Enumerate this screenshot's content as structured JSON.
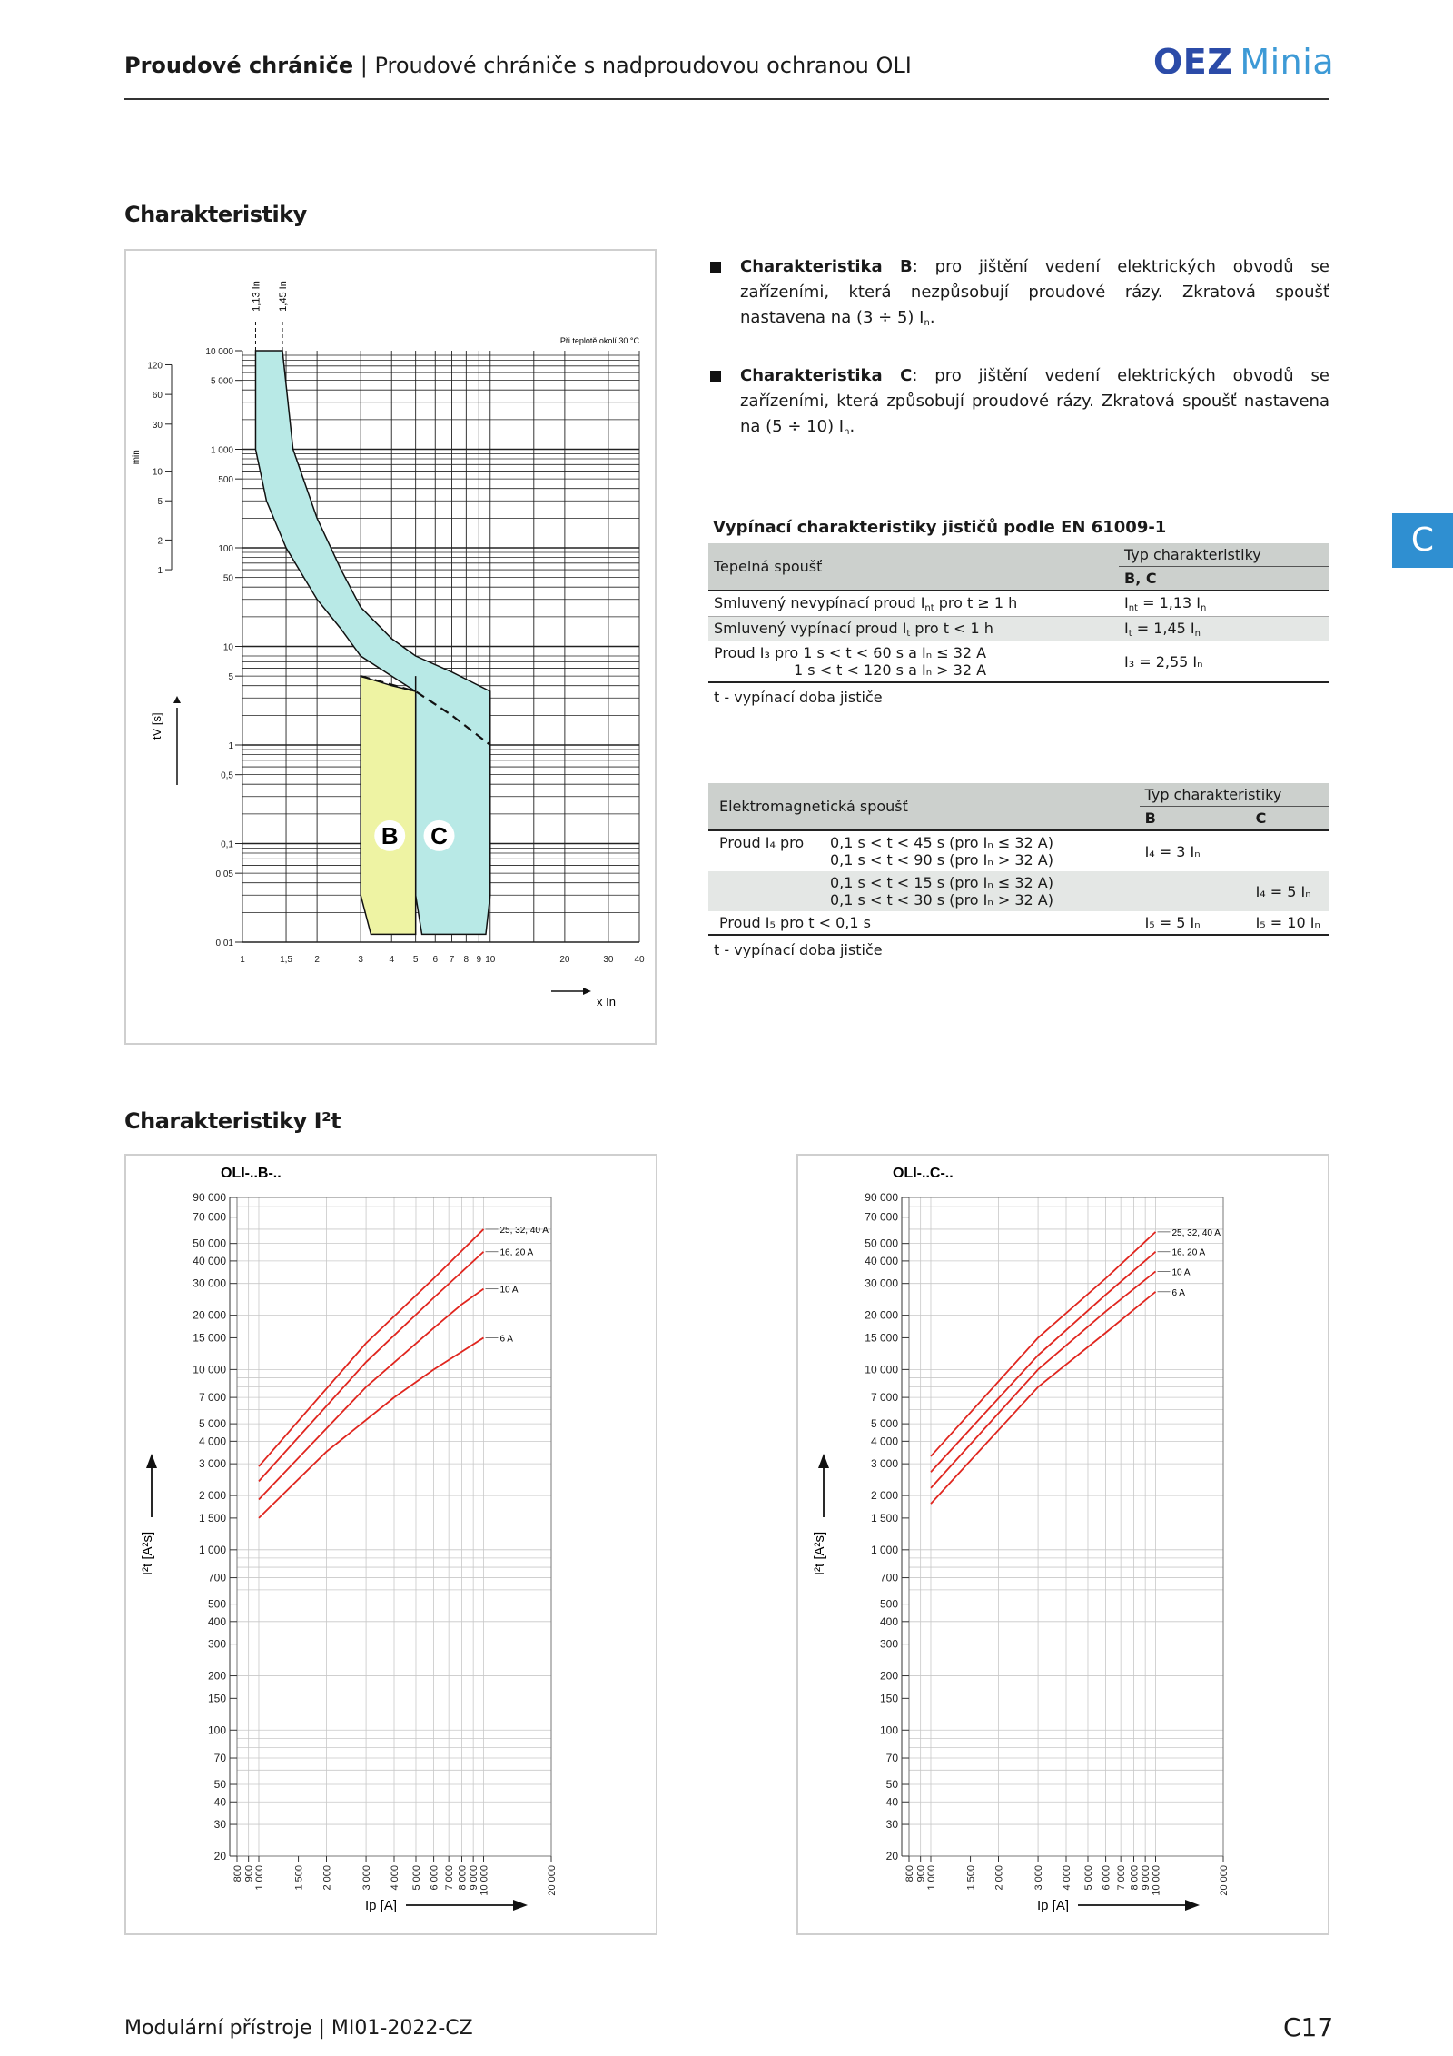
{
  "header": {
    "title_bold": "Proudové chrániče",
    "title_rest": " | Proudové chrániče s nadproudovou ochranou OLI",
    "logo_oez": "OEZ",
    "logo_minia": "Minia"
  },
  "section1_title": "Charakteristiky",
  "section2_title": "Charakteristiky I²t",
  "side_tab": "C",
  "bullets": [
    {
      "bold": "Charakteristika B",
      "text": ": pro jištění vedení elektrických obvodů se zařízeními, která nezpůsobují proudové rázy. Zkratová spoušť nastavena na (3 ÷ 5) I",
      "sub": "n",
      "end": "."
    },
    {
      "bold": "Charakteristika C",
      "text": ": pro jištění vedení elektrických obvodů se zařízeními, která způsobují proudové rázy. Zkratová spoušť nastavena na (5 ÷ 10) I",
      "sub": "n",
      "end": "."
    }
  ],
  "tables": {
    "title": "Vypínací charakteristiky jističů podle EN 61009-1",
    "thermal": {
      "head_left": "Tepelná spoušť",
      "head_type": "Typ charakteristiky",
      "head_bc": "B, C",
      "r1_label": "Smluvený nevypínací proud  I",
      "r1_sub": "nt",
      "r1_rest": " pro t ≥ 1 h",
      "r1_val": "I",
      "r1_val_sub": "nt",
      "r1_val_rest": " = 1,13 I",
      "r1_val_sub2": "n",
      "r2_label": "Smluvený vypínací proud  I",
      "r2_sub": "t",
      "r2_rest": " pro t < 1 h",
      "r2_val": "I",
      "r2_val_sub": "t",
      "r2_val_rest": " = 1,45 I",
      "r2_val_sub2": "n",
      "r3a": "Proud I₃ pro   1 s < t < 60 s  a  Iₙ ≤ 32 A",
      "r3b": "1 s < t < 120 s  a  Iₙ > 32 A",
      "r3_val": "I₃ = 2,55 Iₙ",
      "note": "t - vypínací doba jističe"
    },
    "magnetic": {
      "head_left": "Elektromagnetická spoušť",
      "head_type": "Typ charakteristiky",
      "head_b": "B",
      "head_c": "C",
      "r1_label": "Proud I₄ pro",
      "r1a": "0,1 s < t < 45 s  (pro Iₙ ≤ 32 A)",
      "r1b": "0,1 s < t < 90 s  (pro Iₙ > 32 A)",
      "r1_val": "I₄ = 3 Iₙ",
      "r2a": "0,1 s < t < 15 s  (pro Iₙ ≤ 32 A)",
      "r2b": "0,1 s < t < 30 s  (pro Iₙ > 32 A)",
      "r2_val": "I₄ = 5 Iₙ",
      "r3_label": "Proud I₅ pro t < 0,1 s",
      "r3_b": "I₅ = 5 Iₙ",
      "r3_c": "I₅ = 10 Iₙ",
      "note": "t - vypínací doba jističe"
    }
  },
  "trip_chart": {
    "temp_note": "Při teplotě okolí 30 °C",
    "marker1": "1,13 I",
    "marker2": "1,45 I",
    "x_unit": "x I",
    "y_label": "t",
    "y_label_sub": "V",
    "y_unit": "[s]",
    "min_label": "min",
    "label_b": "B",
    "label_c": "C",
    "x_ticks": [
      "1",
      "1,5",
      "2",
      "3",
      "4",
      "5",
      "6",
      "7",
      "8",
      "9",
      "10",
      "20",
      "30",
      "40"
    ],
    "s_ticks": [
      "10 000",
      "5 000",
      "1 000",
      "500",
      "100",
      "50",
      "10",
      "5",
      "1",
      "0,5",
      "0,1",
      "0,05",
      "0,01"
    ],
    "min_ticks": [
      "120",
      "60",
      "30",
      "10",
      "5",
      "2",
      "1"
    ]
  },
  "chart_data": [
    {
      "type": "area",
      "x_scale": "log",
      "y_scale": "log",
      "xlabel": "x In",
      "ylabel": "tV [s]",
      "xlim": [
        1,
        40
      ],
      "ylim": [
        0.01,
        10000
      ],
      "series": [
        {
          "name": "B",
          "upper": [
            [
              1.13,
              10000
            ],
            [
              1.45,
              10000
            ],
            [
              1.6,
              1000
            ],
            [
              2,
              200
            ],
            [
              2.5,
              60
            ],
            [
              3,
              25
            ],
            [
              4,
              10
            ],
            [
              5,
              7
            ]
          ],
          "lower": [
            [
              3,
              5
            ],
            [
              4,
              4
            ],
            [
              5,
              3.5
            ]
          ],
          "instant": [
            3,
            5
          ]
        },
        {
          "name": "C",
          "upper": [
            [
              1.13,
              10000
            ],
            [
              1.45,
              10000
            ],
            [
              1.6,
              1000
            ],
            [
              2,
              200
            ],
            [
              2.5,
              60
            ],
            [
              3,
              25
            ],
            [
              4,
              12
            ],
            [
              5,
              8
            ],
            [
              7,
              5.5
            ],
            [
              10,
              3.5
            ]
          ],
          "lower": [
            [
              5,
              3.5
            ],
            [
              7,
              2
            ],
            [
              10,
              1
            ]
          ],
          "instant": [
            5,
            10
          ]
        }
      ]
    },
    {
      "type": "line",
      "title": "OLI-..B-..",
      "x_scale": "log",
      "y_scale": "log",
      "xlabel": "Ip [A]",
      "ylabel": "I²t [A²s]",
      "xlim": [
        800,
        20000
      ],
      "ylim": [
        20,
        90000
      ],
      "x_ticks": [
        "800",
        "900",
        "1 000",
        "1 500",
        "2 000",
        "3 000",
        "4 000",
        "5 000",
        "6 000",
        "7 000",
        "8 000",
        "9 000",
        "10 000",
        "20 000"
      ],
      "y_ticks": [
        "90 000",
        "70 000",
        "50 000",
        "40 000",
        "30 000",
        "20 000",
        "15 000",
        "10 000",
        "7 000",
        "5 000",
        "4 000",
        "3 000",
        "2 000",
        "1 500",
        "1 000",
        "700",
        "500",
        "400",
        "300",
        "200",
        "150",
        "100",
        "70",
        "50",
        "40",
        "30",
        "20"
      ],
      "series": [
        {
          "name": "25, 32, 40 A",
          "points": [
            [
              1000,
              2900
            ],
            [
              3000,
              14000
            ],
            [
              6000,
              32000
            ],
            [
              10000,
              60000
            ]
          ]
        },
        {
          "name": "16, 20 A",
          "points": [
            [
              1000,
              2400
            ],
            [
              3000,
              11000
            ],
            [
              6000,
              25000
            ],
            [
              10000,
              45000
            ]
          ]
        },
        {
          "name": "10 A",
          "points": [
            [
              1000,
              1900
            ],
            [
              3000,
              8000
            ],
            [
              6000,
              17000
            ],
            [
              8000,
              23000
            ],
            [
              10000,
              28000
            ]
          ]
        },
        {
          "name": "6 A",
          "points": [
            [
              1000,
              1500
            ],
            [
              2000,
              3500
            ],
            [
              4000,
              7000
            ],
            [
              6000,
              10000
            ],
            [
              10000,
              15000
            ]
          ]
        }
      ]
    },
    {
      "type": "line",
      "title": "OLI-..C-..",
      "x_scale": "log",
      "y_scale": "log",
      "xlabel": "Ip [A]",
      "ylabel": "I²t [A²s]",
      "xlim": [
        800,
        20000
      ],
      "ylim": [
        20,
        90000
      ],
      "x_ticks": [
        "800",
        "900",
        "1 000",
        "1 500",
        "2 000",
        "3 000",
        "4 000",
        "5 000",
        "6 000",
        "7 000",
        "8 000",
        "9 000",
        "10 000",
        "20 000"
      ],
      "y_ticks": [
        "90 000",
        "70 000",
        "50 000",
        "40 000",
        "30 000",
        "20 000",
        "15 000",
        "10 000",
        "7 000",
        "5 000",
        "4 000",
        "3 000",
        "2 000",
        "1 500",
        "1 000",
        "700",
        "500",
        "400",
        "300",
        "200",
        "150",
        "100",
        "70",
        "50",
        "40",
        "30",
        "20"
      ],
      "series": [
        {
          "name": "25, 32, 40 A",
          "points": [
            [
              1000,
              3300
            ],
            [
              3000,
              15000
            ],
            [
              6000,
              32000
            ],
            [
              10000,
              58000
            ]
          ]
        },
        {
          "name": "16, 20 A",
          "points": [
            [
              1000,
              2700
            ],
            [
              3000,
              12000
            ],
            [
              6000,
              26000
            ],
            [
              10000,
              45000
            ]
          ]
        },
        {
          "name": "10 A",
          "points": [
            [
              1000,
              2200
            ],
            [
              3000,
              10000
            ],
            [
              6000,
              21000
            ],
            [
              10000,
              35000
            ]
          ]
        },
        {
          "name": "6 A",
          "points": [
            [
              1000,
              1800
            ],
            [
              3000,
              8000
            ],
            [
              6000,
              16000
            ],
            [
              10000,
              27000
            ]
          ]
        }
      ]
    }
  ],
  "footer": {
    "left": "Modulární přístroje | MI01-2022-CZ",
    "right": "C17"
  }
}
